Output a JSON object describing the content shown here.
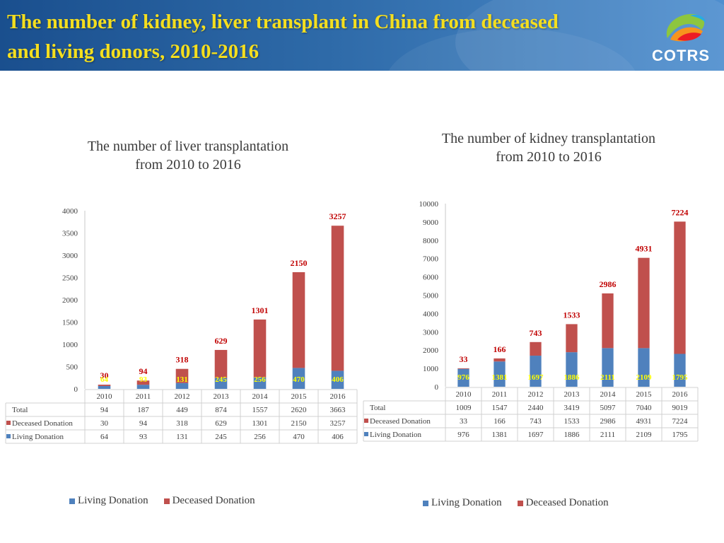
{
  "header": {
    "title_line1": "The number of kidney, liver transplant in China from deceased",
    "title_line2": "and living donors, 2010-2016",
    "logo_text": "COTRS"
  },
  "colors": {
    "living": "#4f81bd",
    "deceased": "#c0504d",
    "title_yellow": "#f4de1f",
    "label_red": "#c00000",
    "label_yellow": "#ffff00"
  },
  "liver": {
    "title_line1": "The number of liver transplantation",
    "title_line2": "from 2010 to 2016",
    "legend": [
      "Living Donation",
      "Deceased Donation"
    ]
  },
  "kidney": {
    "title_line1": "The number of kidney transplantation",
    "title_line2": "from 2010 to 2016",
    "legend": [
      "Living Donation",
      "Deceased Donation"
    ]
  },
  "chart_data": [
    {
      "type": "bar",
      "stacked": true,
      "categories": [
        "2010",
        "2011",
        "2012",
        "2013",
        "2014",
        "2015",
        "2016"
      ],
      "series": [
        {
          "name": "Living Donation",
          "values": [
            64,
            93,
            131,
            245,
            256,
            470,
            406
          ]
        },
        {
          "name": "Deceased Donation",
          "values": [
            30,
            94,
            318,
            629,
            1301,
            2150,
            3257
          ]
        }
      ],
      "table_rows": [
        {
          "name": "Total",
          "values": [
            94,
            187,
            449,
            874,
            1557,
            2620,
            3663
          ]
        },
        {
          "name": "Deceased Donation",
          "values": [
            30,
            94,
            318,
            629,
            1301,
            2150,
            3257
          ]
        },
        {
          "name": "Living Donation",
          "values": [
            64,
            93,
            131,
            245,
            256,
            470,
            406
          ]
        }
      ],
      "yticks": [
        0,
        500,
        1000,
        1500,
        2000,
        2500,
        3000,
        3500,
        4000
      ],
      "ylim": [
        0,
        4000
      ],
      "deceased_labels": [
        "30",
        "94",
        "318",
        "629",
        "1301",
        "2150",
        "3257"
      ],
      "living_labels": [
        "64",
        "93",
        "131",
        "245",
        "256",
        "470",
        "406"
      ],
      "legend_position": "bottom",
      "grid": false
    },
    {
      "type": "bar",
      "stacked": true,
      "categories": [
        "2010",
        "2011",
        "2012",
        "2013",
        "2014",
        "2015",
        "2016"
      ],
      "series": [
        {
          "name": "Living Donation",
          "values": [
            976,
            1381,
            1697,
            1886,
            2111,
            2109,
            1795
          ]
        },
        {
          "name": "Deceased Donation",
          "values": [
            33,
            166,
            743,
            1533,
            2986,
            4931,
            7224
          ]
        }
      ],
      "table_rows": [
        {
          "name": "Total",
          "values": [
            1009,
            1547,
            2440,
            3419,
            5097,
            7040,
            9019
          ]
        },
        {
          "name": "Deceased Donation",
          "values": [
            33,
            166,
            743,
            1533,
            2986,
            4931,
            7224
          ]
        },
        {
          "name": "Living Donation",
          "values": [
            976,
            1381,
            1697,
            1886,
            2111,
            2109,
            1795
          ]
        }
      ],
      "yticks": [
        0,
        1000,
        2000,
        3000,
        4000,
        5000,
        6000,
        7000,
        8000,
        9000,
        10000
      ],
      "ylim": [
        0,
        10000
      ],
      "deceased_labels": [
        "33",
        "166",
        "743",
        "1533",
        "2986",
        "4931",
        "7224"
      ],
      "living_labels": [
        "976",
        "1381",
        "1697",
        "1886",
        "2111",
        "2109",
        "1795"
      ],
      "legend_position": "bottom",
      "grid": false
    }
  ]
}
